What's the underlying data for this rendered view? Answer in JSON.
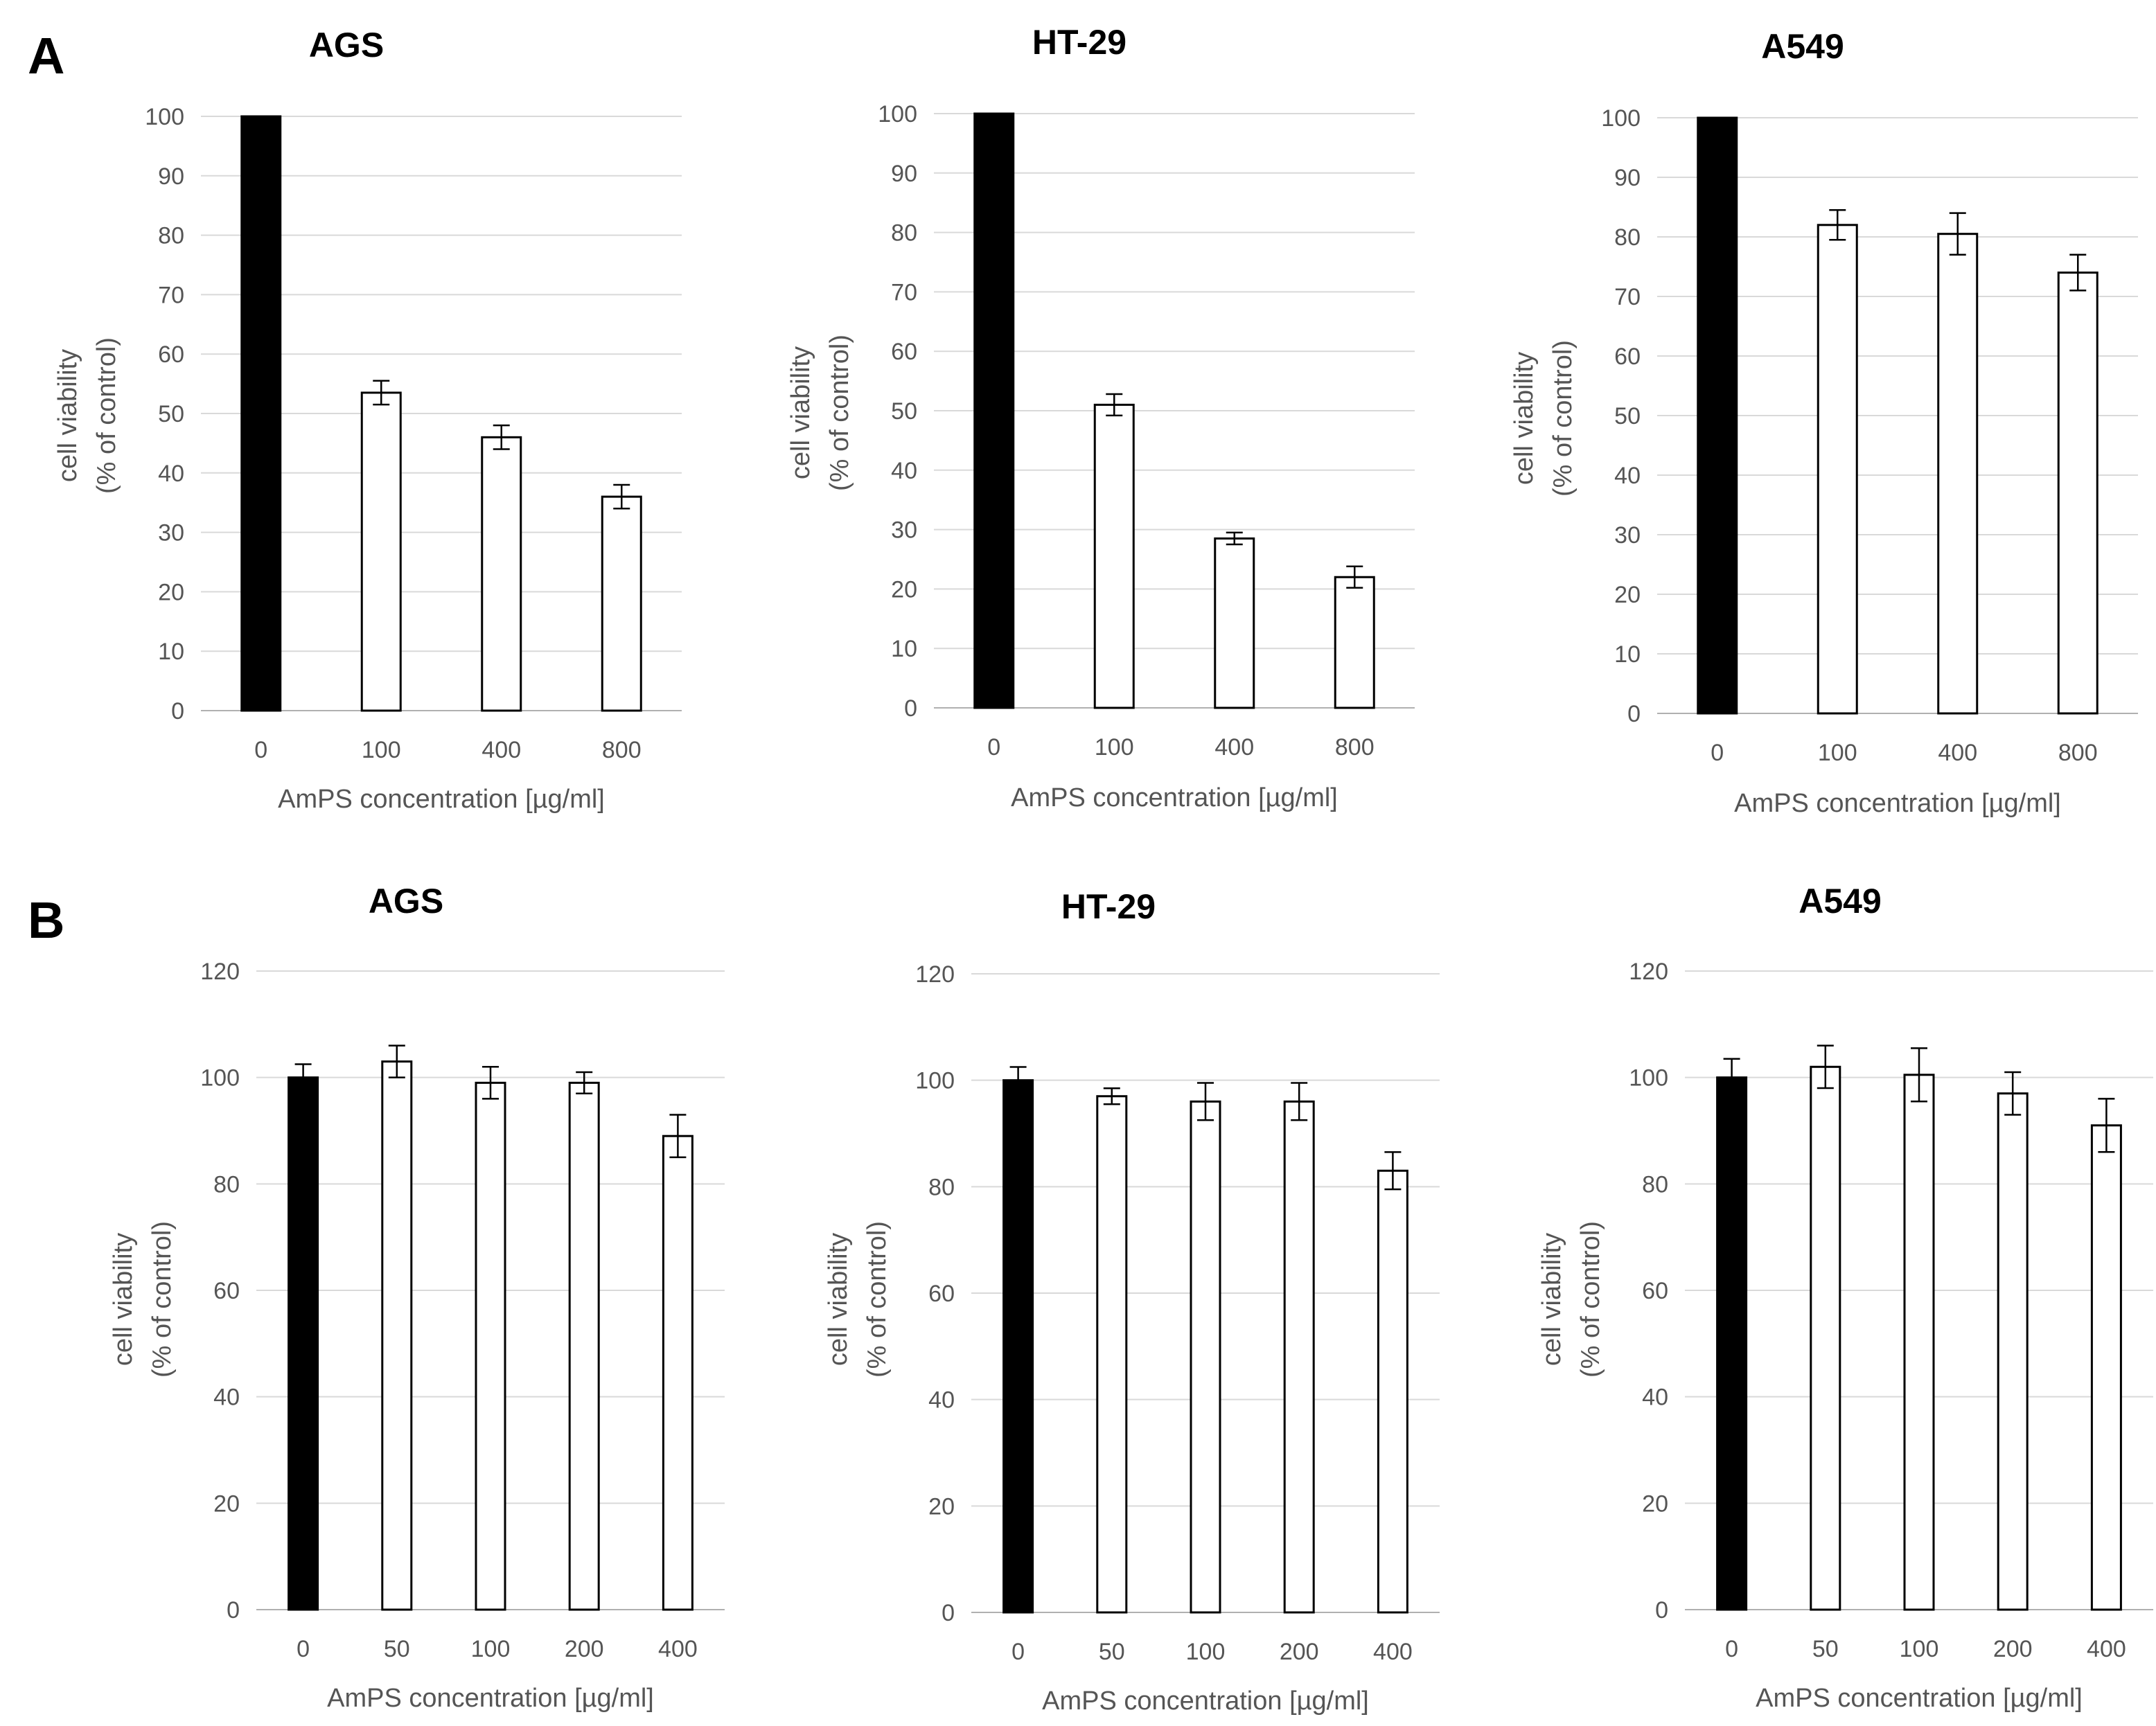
{
  "panel_labels": [
    "A",
    "B"
  ],
  "chart_data": [
    {
      "type": "bar",
      "panel": "A",
      "title": "AGS",
      "categories": [
        "0",
        "100",
        "400",
        "800"
      ],
      "values": [
        100,
        53.5,
        46,
        36
      ],
      "errors": [
        2.5,
        2,
        2,
        2
      ],
      "ylim": [
        0,
        100
      ],
      "yticks": [
        0,
        10,
        20,
        30,
        40,
        50,
        60,
        70,
        80,
        90,
        100
      ],
      "xlabel": "AmPS concentration [µg/ml]",
      "ylabel": [
        "cell viability",
        "(% of control)"
      ],
      "bar_colors": [
        "#000000",
        "#ffffff",
        "#ffffff",
        "#ffffff"
      ]
    },
    {
      "type": "bar",
      "panel": "A",
      "title": "HT-29",
      "categories": [
        "0",
        "100",
        "400",
        "800"
      ],
      "values": [
        100,
        51,
        28.5,
        22
      ],
      "errors": [
        5,
        1.8,
        1,
        1.8
      ],
      "ylim": [
        0,
        100
      ],
      "yticks": [
        0,
        10,
        20,
        30,
        40,
        50,
        60,
        70,
        80,
        90,
        100
      ],
      "xlabel": "AmPS concentration [µg/ml]",
      "ylabel": [
        "cell viability",
        "(% of control)"
      ],
      "bar_colors": [
        "#000000",
        "#ffffff",
        "#ffffff",
        "#ffffff"
      ]
    },
    {
      "type": "bar",
      "panel": "A",
      "title": "A549",
      "categories": [
        "0",
        "100",
        "400",
        "800"
      ],
      "values": [
        100,
        82,
        80.5,
        74
      ],
      "errors": [
        4.5,
        2.5,
        3.5,
        3
      ],
      "ylim": [
        0,
        100
      ],
      "yticks": [
        0,
        10,
        20,
        30,
        40,
        50,
        60,
        70,
        80,
        90,
        100
      ],
      "xlabel": "AmPS concentration [µg/ml]",
      "ylabel": [
        "cell viability",
        "(% of control)"
      ],
      "bar_colors": [
        "#000000",
        "#ffffff",
        "#ffffff",
        "#ffffff"
      ]
    },
    {
      "type": "bar",
      "panel": "B",
      "title": "AGS",
      "categories": [
        "0",
        "50",
        "100",
        "200",
        "400"
      ],
      "values": [
        100,
        103,
        99,
        99,
        89
      ],
      "errors": [
        2.5,
        3,
        3,
        2,
        4
      ],
      "ylim": [
        0,
        120
      ],
      "yticks": [
        0,
        20,
        40,
        60,
        80,
        100,
        120
      ],
      "xlabel": "AmPS concentration [µg/ml]",
      "ylabel": [
        "cell viability",
        "(% of control)"
      ],
      "bar_colors": [
        "#000000",
        "#ffffff",
        "#ffffff",
        "#ffffff",
        "#ffffff"
      ]
    },
    {
      "type": "bar",
      "panel": "B",
      "title": "HT-29",
      "categories": [
        "0",
        "50",
        "100",
        "200",
        "400"
      ],
      "values": [
        100,
        97,
        96,
        96,
        83
      ],
      "errors": [
        2.5,
        1.5,
        3.5,
        3.5,
        3.5
      ],
      "ylim": [
        0,
        120
      ],
      "yticks": [
        0,
        20,
        40,
        60,
        80,
        100,
        120
      ],
      "xlabel": "AmPS concentration [µg/ml]",
      "ylabel": [
        "cell viability",
        "(% of control)"
      ],
      "bar_colors": [
        "#000000",
        "#ffffff",
        "#ffffff",
        "#ffffff",
        "#ffffff"
      ]
    },
    {
      "type": "bar",
      "panel": "B",
      "title": "A549",
      "categories": [
        "0",
        "50",
        "100",
        "200",
        "400"
      ],
      "values": [
        100,
        102,
        100.5,
        97,
        91
      ],
      "errors": [
        3.5,
        4,
        5,
        4,
        5
      ],
      "ylim": [
        0,
        120
      ],
      "yticks": [
        0,
        20,
        40,
        60,
        80,
        100,
        120
      ],
      "xlabel": "AmPS concentration [µg/ml]",
      "ylabel": [
        "cell viability",
        "(% of control)"
      ],
      "bar_colors": [
        "#000000",
        "#ffffff",
        "#ffffff",
        "#ffffff",
        "#ffffff"
      ]
    }
  ]
}
